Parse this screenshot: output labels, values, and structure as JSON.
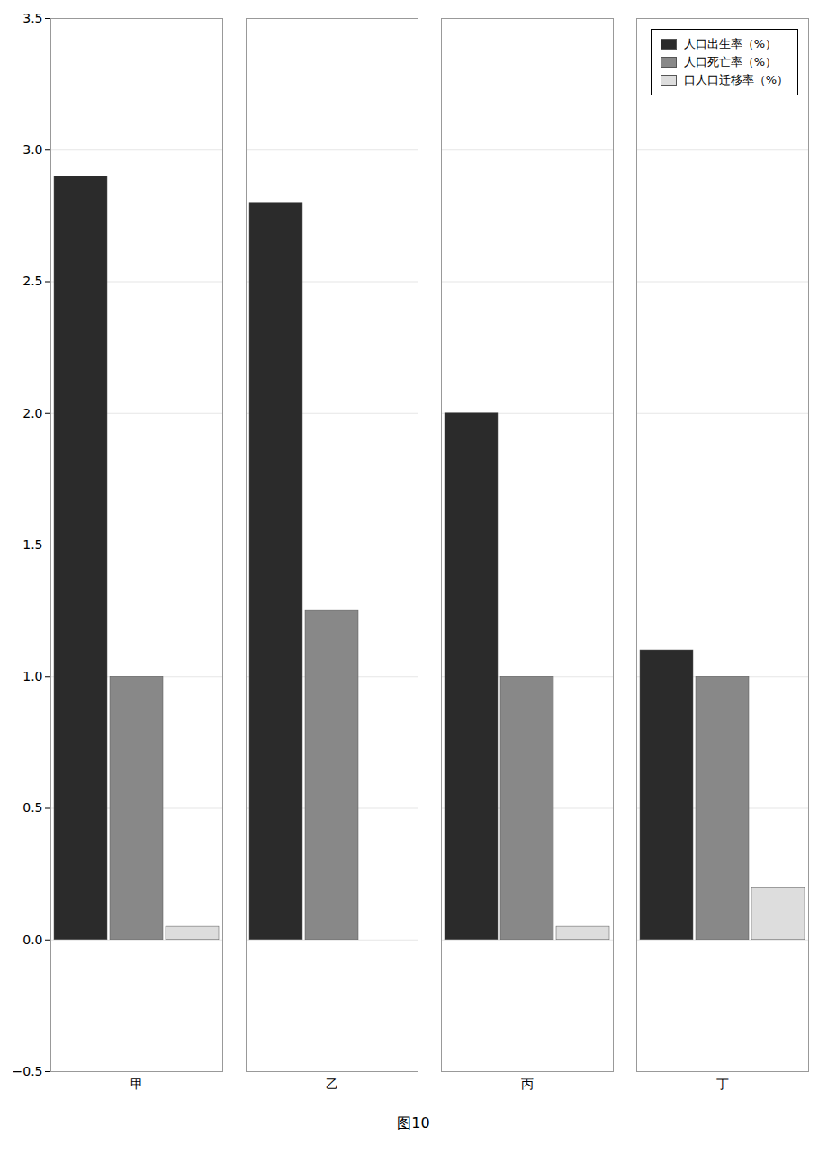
{
  "chart_data": {
    "type": "bar",
    "title": "图10",
    "categories": [
      "甲",
      "乙",
      "丙",
      "丁"
    ],
    "series": [
      {
        "name": "人口出生率（%）",
        "color": "#2b2b2b",
        "values": [
          2.9,
          2.8,
          2.0,
          1.1
        ]
      },
      {
        "name": "人口死亡率（%）",
        "color": "#888888",
        "values": [
          1.0,
          1.25,
          1.0,
          1.0
        ]
      },
      {
        "name": "口人口迁移率（%）",
        "color": "#dddddd",
        "values": [
          0.05,
          0.0,
          0.05,
          0.2
        ]
      }
    ],
    "ylim": [
      -0.5,
      3.5
    ],
    "yticks": [
      -0.5,
      0,
      0.5,
      1,
      1.5,
      2,
      2.5,
      3,
      3.5
    ],
    "grid": true,
    "legend": "upper right"
  }
}
